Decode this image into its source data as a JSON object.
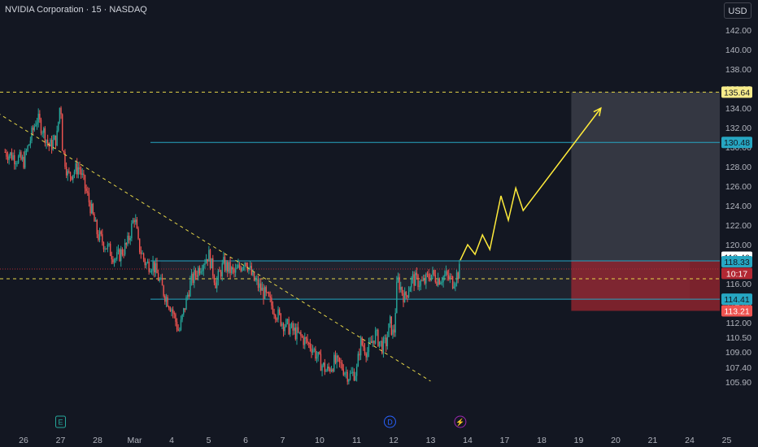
{
  "header": {
    "title": "NVIDIA Corporation · 15 · NASDAQ",
    "currency": "USD"
  },
  "colors": {
    "background": "#131722",
    "up": "#26a69a",
    "down": "#ef5350",
    "trend": "#e5d548",
    "level": "#26a6c2",
    "forecast": "#ffeb3b",
    "target_zone": "#5d606b",
    "stop_zone": "#b22833"
  },
  "chart_data": {
    "type": "candlestick",
    "x_ticks": [
      {
        "label": "26",
        "day": 0
      },
      {
        "label": "27",
        "day": 1
      },
      {
        "label": "28",
        "day": 2
      },
      {
        "label": "Mar",
        "day": 3
      },
      {
        "label": "4",
        "day": 4
      },
      {
        "label": "5",
        "day": 5
      },
      {
        "label": "6",
        "day": 6
      },
      {
        "label": "7",
        "day": 7
      },
      {
        "label": "10",
        "day": 8
      },
      {
        "label": "11",
        "day": 9
      },
      {
        "label": "12",
        "day": 10
      },
      {
        "label": "13",
        "day": 11
      },
      {
        "label": "14",
        "day": 12
      },
      {
        "label": "17",
        "day": 13
      },
      {
        "label": "18",
        "day": 14
      },
      {
        "label": "19",
        "day": 15
      },
      {
        "label": "20",
        "day": 16
      },
      {
        "label": "21",
        "day": 17
      },
      {
        "label": "24",
        "day": 18
      },
      {
        "label": "25",
        "day": 19
      }
    ],
    "y_ticks": [
      "105.90",
      "107.40",
      "109.00",
      "110.50",
      "112.00",
      "114.00",
      "116.00",
      "118.00",
      "120.00",
      "122.00",
      "124.00",
      "126.00",
      "128.00",
      "130.00",
      "132.00",
      "134.00",
      "136.00",
      "138.00",
      "140.00",
      "142.00"
    ],
    "price_path": [
      [
        -0.5,
        129.5
      ],
      [
        0,
        128.5
      ],
      [
        0.2,
        131
      ],
      [
        0.35,
        133
      ],
      [
        0.5,
        132
      ],
      [
        0.7,
        130
      ],
      [
        0.9,
        131
      ],
      [
        1.0,
        135
      ],
      [
        1.05,
        130
      ],
      [
        1.2,
        127
      ],
      [
        1.5,
        128
      ],
      [
        1.8,
        124
      ],
      [
        2.0,
        121
      ],
      [
        2.2,
        120
      ],
      [
        2.5,
        118.5
      ],
      [
        2.8,
        120
      ],
      [
        3.0,
        123
      ],
      [
        3.1,
        120
      ],
      [
        3.3,
        118
      ],
      [
        3.5,
        118
      ],
      [
        3.8,
        115
      ],
      [
        4.0,
        113.5
      ],
      [
        4.2,
        111
      ],
      [
        4.5,
        116
      ],
      [
        4.8,
        118
      ],
      [
        5.0,
        119
      ],
      [
        5.2,
        116
      ],
      [
        5.4,
        118
      ],
      [
        5.7,
        117
      ],
      [
        6.0,
        118.5
      ],
      [
        6.2,
        116.5
      ],
      [
        6.5,
        115
      ],
      [
        7.0,
        112
      ],
      [
        7.5,
        110.5
      ],
      [
        7.8,
        109.5
      ],
      [
        8.0,
        108
      ],
      [
        8.2,
        107
      ],
      [
        8.4,
        108
      ],
      [
        8.6,
        107.5
      ],
      [
        8.8,
        106.5
      ],
      [
        9.0,
        107
      ],
      [
        9.1,
        110
      ],
      [
        9.3,
        109
      ],
      [
        9.5,
        110.8
      ],
      [
        9.7,
        109.5
      ],
      [
        9.8,
        110
      ],
      [
        9.9,
        112
      ],
      [
        10.0,
        110.5
      ],
      [
        10.1,
        116.5
      ],
      [
        10.3,
        114.5
      ],
      [
        10.5,
        116.5
      ],
      [
        10.8,
        116
      ],
      [
        11.0,
        117
      ],
      [
        11.2,
        116.5
      ],
      [
        11.4,
        116.8
      ],
      [
        11.6,
        116.2
      ],
      [
        11.8,
        117.5
      ]
    ],
    "levels": [
      {
        "label": "135.64",
        "value": 135.64,
        "style": "dashed",
        "color": "#e5d548",
        "tag_bg": "#f7ec8a",
        "tag_fg": "#131722"
      },
      {
        "label": "130.48",
        "value": 130.48,
        "style": "solid",
        "color": "#26a6c2",
        "tag_bg": "#26a6c2",
        "tag_fg": "#131722"
      },
      {
        "label": "118.46",
        "value": 118.46,
        "style": "none",
        "color": "#ffffff",
        "tag_bg": "#ffffff",
        "tag_fg": "#131722"
      },
      {
        "label": "118.33",
        "value": 118.33,
        "style": "solid",
        "color": "#26a6c2",
        "tag_bg": "#26a6c2",
        "tag_fg": "#131722"
      },
      {
        "label": "10:17",
        "value": 117.5,
        "style": "dotted",
        "color": "#b22833",
        "tag_bg": "#b22833",
        "tag_fg": "#ffffff"
      },
      {
        "label": "114.41",
        "value": 114.41,
        "style": "solid",
        "color": "#26a6c2",
        "tag_bg": "#26a6c2",
        "tag_fg": "#131722"
      },
      {
        "label": "113.21",
        "value": 113.21,
        "style": "none",
        "color": "#ef5350",
        "tag_bg": "#ef5350",
        "tag_fg": "#ffffff"
      }
    ],
    "horizontal_dashed": [
      {
        "value": 116.5
      }
    ],
    "trendline": [
      [
        -0.7,
        133.5
      ],
      [
        11.0,
        106.0
      ]
    ],
    "support_box": {
      "from_day": 3.7,
      "to_day": 18,
      "top": 118.33,
      "bottom": 114.41
    },
    "target_zone": {
      "from_day": 14.8,
      "to_day": 19,
      "top": 135.64,
      "bottom": 118.33
    },
    "stop_zone": {
      "from_day": 14.8,
      "to_day": 19,
      "top": 118.33,
      "bottom": 113.21
    },
    "forecast_path": [
      [
        11.8,
        118.4
      ],
      [
        12.0,
        120
      ],
      [
        12.2,
        119
      ],
      [
        12.4,
        121
      ],
      [
        12.6,
        119.5
      ],
      [
        12.9,
        125
      ],
      [
        13.1,
        122.5
      ],
      [
        13.3,
        125.8
      ],
      [
        13.5,
        123.5
      ],
      [
        15.6,
        134
      ]
    ],
    "events": [
      {
        "label": "E",
        "day": 1,
        "color": "#26a69a"
      },
      {
        "label": "D",
        "day": 9.9,
        "color": "#2962ff"
      },
      {
        "label": "⚡",
        "day": 11.8,
        "color": "#9c27b0"
      }
    ]
  }
}
